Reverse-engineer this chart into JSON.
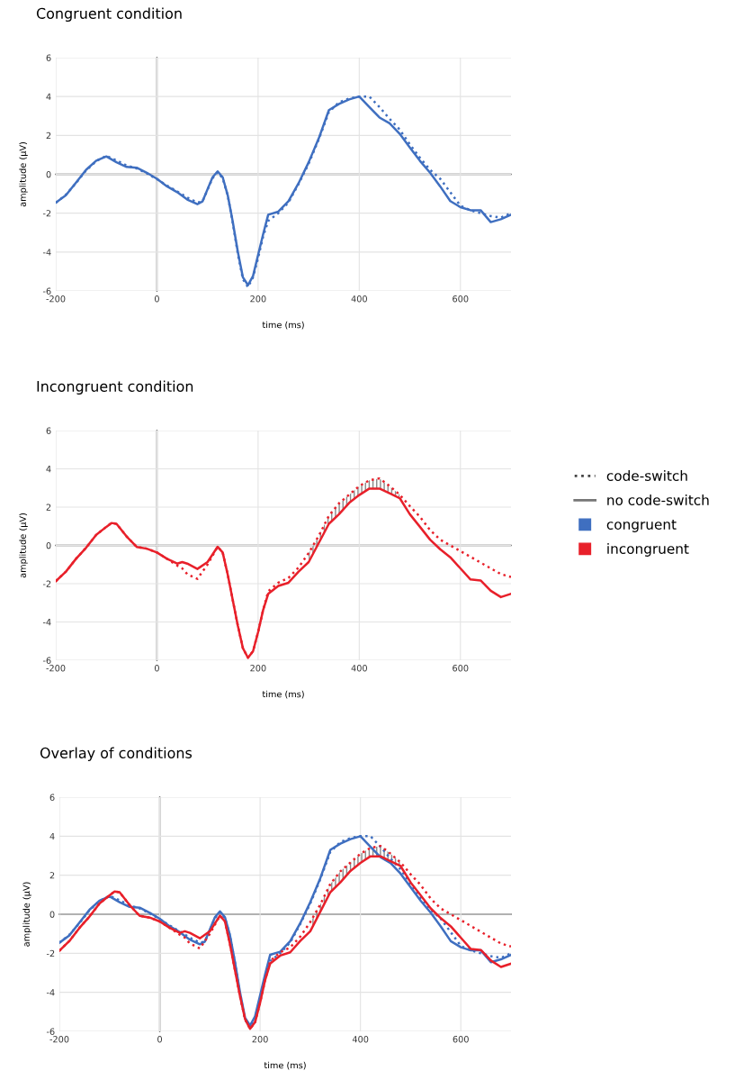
{
  "chart_data": [
    {
      "type": "line",
      "title": "Congruent condition",
      "xlabel": "time (ms)",
      "ylabel": "amplitude (µV)",
      "xlim": [
        -200,
        700
      ],
      "xticks": [
        -200,
        0,
        200,
        400,
        600
      ],
      "ylim": [
        -6,
        6
      ],
      "yticks": [
        -6,
        -4,
        -2,
        0,
        2,
        4,
        6
      ],
      "grid": true,
      "series": [
        {
          "color": "#3f6fc0",
          "line_style": "dotted",
          "x": [
            -200,
            -180,
            -160,
            -140,
            -120,
            -100,
            -80,
            -60,
            -40,
            -20,
            0,
            20,
            40,
            60,
            80,
            90,
            100,
            110,
            120,
            130,
            140,
            150,
            160,
            170,
            180,
            190,
            200,
            210,
            220,
            240,
            260,
            280,
            300,
            320,
            340,
            360,
            380,
            400,
            420,
            440,
            460,
            480,
            500,
            520,
            540,
            560,
            580,
            600,
            620,
            640,
            660,
            680,
            700
          ],
          "values": [
            -1.46,
            -1.05,
            -0.45,
            0.2,
            0.68,
            0.95,
            0.72,
            0.45,
            0.3,
            0.05,
            -0.25,
            -0.58,
            -0.88,
            -1.2,
            -1.45,
            -1.4,
            -0.8,
            -0.2,
            0.1,
            -0.2,
            -1.1,
            -2.5,
            -4.1,
            -5.4,
            -5.8,
            -5.3,
            -4.3,
            -3.2,
            -2.4,
            -2.0,
            -1.45,
            -0.5,
            0.55,
            1.8,
            3.2,
            3.7,
            3.9,
            4.0,
            4.0,
            3.46,
            2.85,
            2.3,
            1.54,
            0.85,
            0.23,
            -0.23,
            -0.92,
            -1.62,
            -1.85,
            -2.0,
            -2.15,
            -2.23,
            -2.0
          ]
        },
        {
          "color": "#3f6fc0",
          "line_style": "solid",
          "x": [
            -200,
            -180,
            -160,
            -140,
            -120,
            -100,
            -80,
            -60,
            -40,
            -20,
            0,
            20,
            40,
            60,
            80,
            90,
            100,
            110,
            120,
            130,
            140,
            150,
            160,
            170,
            180,
            190,
            200,
            210,
            220,
            240,
            260,
            280,
            300,
            320,
            340,
            360,
            380,
            400,
            420,
            440,
            460,
            480,
            500,
            520,
            540,
            560,
            580,
            600,
            620,
            640,
            660,
            680,
            700
          ],
          "values": [
            -1.46,
            -1.08,
            -0.43,
            0.23,
            0.7,
            0.92,
            0.62,
            0.38,
            0.34,
            0.08,
            -0.23,
            -0.62,
            -0.92,
            -1.3,
            -1.54,
            -1.4,
            -0.77,
            -0.15,
            0.15,
            -0.15,
            -1.08,
            -2.46,
            -4.0,
            -5.3,
            -5.7,
            -5.23,
            -4.15,
            -3.08,
            -2.08,
            -1.92,
            -1.38,
            -0.46,
            0.62,
            1.85,
            3.3,
            3.62,
            3.85,
            4.0,
            3.46,
            2.92,
            2.62,
            2.08,
            1.38,
            0.69,
            0.08,
            -0.62,
            -1.38,
            -1.69,
            -1.85,
            -1.85,
            -2.46,
            -2.31,
            -2.08
          ]
        }
      ]
    },
    {
      "type": "line",
      "title": "Incongruent condition",
      "xlabel": "time (ms)",
      "ylabel": "amplitude (µV)",
      "xlim": [
        -200,
        700
      ],
      "xticks": [
        -200,
        0,
        200,
        400,
        600
      ],
      "ylim": [
        -6,
        6
      ],
      "yticks": [
        -6,
        -4,
        -2,
        0,
        2,
        4,
        6
      ],
      "grid": true,
      "series": [
        {
          "color": "#e8202a",
          "line_style": "dotted",
          "x": [
            -200,
            -180,
            -160,
            -140,
            -120,
            -100,
            -90,
            -80,
            -60,
            -40,
            -20,
            0,
            20,
            40,
            50,
            60,
            80,
            100,
            120,
            130,
            140,
            150,
            160,
            170,
            180,
            190,
            200,
            210,
            220,
            240,
            260,
            280,
            300,
            320,
            340,
            360,
            380,
            400,
            420,
            440,
            460,
            480,
            500,
            520,
            540,
            560,
            580,
            600,
            620,
            640,
            660,
            680,
            700
          ],
          "values": [
            -1.87,
            -1.37,
            -0.7,
            -0.12,
            0.55,
            0.97,
            1.17,
            1.13,
            0.47,
            -0.08,
            -0.17,
            -0.37,
            -0.7,
            -1.05,
            -1.2,
            -1.5,
            -1.75,
            -1.0,
            -0.07,
            -0.37,
            -1.53,
            -2.87,
            -4.2,
            -5.37,
            -5.87,
            -5.53,
            -4.53,
            -3.37,
            -2.4,
            -1.95,
            -1.7,
            -1.15,
            -0.4,
            0.5,
            1.55,
            2.2,
            2.65,
            3.1,
            3.4,
            3.5,
            3.1,
            2.65,
            2.05,
            1.5,
            0.8,
            0.3,
            0.0,
            -0.3,
            -0.6,
            -0.9,
            -1.2,
            -1.5,
            -1.65
          ],
          "lower": [
            null,
            null,
            null,
            null,
            null,
            null,
            null,
            null,
            null,
            null,
            null,
            null,
            null,
            null,
            null,
            null,
            null,
            null,
            null,
            null,
            null,
            null,
            null,
            null,
            null,
            null,
            null,
            null,
            null,
            null,
            null,
            null,
            -0.87,
            0.13,
            1.13,
            1.63,
            2.22,
            2.63,
            2.97,
            2.97,
            2.72,
            2.47,
            null,
            null,
            null,
            null,
            null,
            null,
            null,
            null,
            null,
            null,
            null
          ],
          "upper": [
            null,
            null,
            null,
            null,
            null,
            null,
            null,
            null,
            null,
            null,
            null,
            null,
            null,
            null,
            null,
            null,
            null,
            null,
            null,
            null,
            null,
            null,
            null,
            null,
            null,
            null,
            null,
            null,
            null,
            null,
            null,
            null,
            -0.4,
            0.5,
            1.55,
            2.2,
            2.65,
            3.1,
            3.4,
            3.5,
            3.1,
            2.65,
            null,
            null,
            null,
            null,
            null,
            null,
            null,
            null,
            null,
            null,
            null
          ]
        },
        {
          "color": "#e8202a",
          "line_style": "solid",
          "x": [
            -200,
            -180,
            -160,
            -140,
            -120,
            -100,
            -90,
            -80,
            -60,
            -40,
            -20,
            0,
            20,
            40,
            50,
            60,
            80,
            100,
            120,
            130,
            140,
            150,
            160,
            170,
            180,
            190,
            200,
            210,
            220,
            240,
            260,
            280,
            300,
            320,
            340,
            360,
            380,
            400,
            420,
            440,
            460,
            480,
            500,
            520,
            540,
            560,
            580,
            600,
            620,
            640,
            660,
            680,
            700
          ],
          "values": [
            -1.87,
            -1.37,
            -0.7,
            -0.12,
            0.55,
            0.97,
            1.17,
            1.13,
            0.47,
            -0.08,
            -0.17,
            -0.37,
            -0.7,
            -0.95,
            -0.87,
            -0.95,
            -1.23,
            -0.87,
            -0.07,
            -0.37,
            -1.53,
            -2.87,
            -4.2,
            -5.37,
            -5.87,
            -5.53,
            -4.53,
            -3.37,
            -2.53,
            -2.12,
            -1.95,
            -1.37,
            -0.87,
            0.13,
            1.13,
            1.63,
            2.22,
            2.63,
            2.97,
            2.97,
            2.72,
            2.47,
            1.63,
            0.97,
            0.3,
            -0.2,
            -0.62,
            -1.2,
            -1.78,
            -1.83,
            -2.37,
            -2.7,
            -2.53
          ]
        }
      ]
    },
    {
      "type": "line",
      "title": "Overlay of conditions",
      "xlabel": "time (ms)",
      "ylabel": "amplitude (µV)",
      "xlim": [
        -200,
        700
      ],
      "xticks": [
        -200,
        0,
        200,
        400,
        600
      ],
      "ylim": [
        -6,
        6
      ],
      "yticks": [
        -6,
        -4,
        -2,
        0,
        2,
        4,
        6
      ],
      "grid": true,
      "series": [
        {
          "color": "#3f6fc0",
          "line_style": "dotted",
          "x": [
            -200,
            -180,
            -160,
            -140,
            -120,
            -100,
            -80,
            -60,
            -40,
            -20,
            0,
            20,
            40,
            60,
            80,
            90,
            100,
            110,
            120,
            130,
            140,
            150,
            160,
            170,
            180,
            190,
            200,
            210,
            220,
            240,
            260,
            280,
            300,
            320,
            340,
            360,
            380,
            400,
            420,
            440,
            460,
            480,
            500,
            520,
            540,
            560,
            580,
            600,
            620,
            640,
            660,
            680,
            700
          ],
          "values": [
            -1.46,
            -1.05,
            -0.45,
            0.2,
            0.68,
            0.95,
            0.72,
            0.45,
            0.3,
            0.05,
            -0.25,
            -0.58,
            -0.88,
            -1.2,
            -1.45,
            -1.4,
            -0.8,
            -0.2,
            0.1,
            -0.2,
            -1.1,
            -2.5,
            -4.1,
            -5.4,
            -5.8,
            -5.3,
            -4.3,
            -3.2,
            -2.4,
            -2.0,
            -1.45,
            -0.5,
            0.55,
            1.8,
            3.2,
            3.7,
            3.9,
            4.0,
            4.0,
            3.46,
            2.85,
            2.3,
            1.54,
            0.85,
            0.23,
            -0.23,
            -0.92,
            -1.62,
            -1.85,
            -2.0,
            -2.15,
            -2.23,
            -2.0
          ]
        },
        {
          "color": "#3f6fc0",
          "line_style": "solid",
          "x": [
            -200,
            -180,
            -160,
            -140,
            -120,
            -100,
            -80,
            -60,
            -40,
            -20,
            0,
            20,
            40,
            60,
            80,
            90,
            100,
            110,
            120,
            130,
            140,
            150,
            160,
            170,
            180,
            190,
            200,
            210,
            220,
            240,
            260,
            280,
            300,
            320,
            340,
            360,
            380,
            400,
            420,
            440,
            460,
            480,
            500,
            520,
            540,
            560,
            580,
            600,
            620,
            640,
            660,
            680,
            700
          ],
          "values": [
            -1.46,
            -1.08,
            -0.43,
            0.23,
            0.7,
            0.92,
            0.62,
            0.38,
            0.34,
            0.08,
            -0.23,
            -0.62,
            -0.92,
            -1.3,
            -1.54,
            -1.4,
            -0.77,
            -0.15,
            0.15,
            -0.15,
            -1.08,
            -2.46,
            -4.0,
            -5.3,
            -5.7,
            -5.23,
            -4.15,
            -3.08,
            -2.08,
            -1.92,
            -1.38,
            -0.46,
            0.62,
            1.85,
            3.3,
            3.62,
            3.85,
            4.0,
            3.46,
            2.92,
            2.62,
            2.08,
            1.38,
            0.69,
            0.08,
            -0.62,
            -1.38,
            -1.69,
            -1.85,
            -1.85,
            -2.46,
            -2.31,
            -2.08
          ]
        },
        {
          "color": "#e8202a",
          "line_style": "dotted",
          "x": [
            -200,
            -180,
            -160,
            -140,
            -120,
            -100,
            -90,
            -80,
            -60,
            -40,
            -20,
            0,
            20,
            40,
            50,
            60,
            80,
            100,
            120,
            130,
            140,
            150,
            160,
            170,
            180,
            190,
            200,
            210,
            220,
            240,
            260,
            280,
            300,
            320,
            340,
            360,
            380,
            400,
            420,
            440,
            460,
            480,
            500,
            520,
            540,
            560,
            580,
            600,
            620,
            640,
            660,
            680,
            700
          ],
          "values": [
            -1.87,
            -1.37,
            -0.7,
            -0.12,
            0.55,
            0.97,
            1.17,
            1.13,
            0.47,
            -0.08,
            -0.17,
            -0.37,
            -0.7,
            -1.05,
            -1.2,
            -1.5,
            -1.75,
            -1.0,
            -0.07,
            -0.37,
            -1.53,
            -2.87,
            -4.2,
            -5.37,
            -5.87,
            -5.53,
            -4.53,
            -3.37,
            -2.4,
            -1.95,
            -1.7,
            -1.15,
            -0.4,
            0.5,
            1.55,
            2.2,
            2.65,
            3.1,
            3.4,
            3.5,
            3.1,
            2.65,
            2.05,
            1.5,
            0.8,
            0.3,
            0.0,
            -0.3,
            -0.6,
            -0.9,
            -1.2,
            -1.5,
            -1.65
          ],
          "lower": [
            null,
            null,
            null,
            null,
            null,
            null,
            null,
            null,
            null,
            null,
            null,
            null,
            null,
            null,
            null,
            null,
            null,
            null,
            null,
            null,
            null,
            null,
            null,
            null,
            null,
            null,
            null,
            null,
            null,
            null,
            null,
            null,
            -0.87,
            0.13,
            1.13,
            1.63,
            2.22,
            2.63,
            2.97,
            2.97,
            2.72,
            2.47,
            null,
            null,
            null,
            null,
            null,
            null,
            null,
            null,
            null,
            null,
            null
          ],
          "upper": [
            null,
            null,
            null,
            null,
            null,
            null,
            null,
            null,
            null,
            null,
            null,
            null,
            null,
            null,
            null,
            null,
            null,
            null,
            null,
            null,
            null,
            null,
            null,
            null,
            null,
            null,
            null,
            null,
            null,
            null,
            null,
            null,
            -0.4,
            0.5,
            1.55,
            2.2,
            2.65,
            3.1,
            3.4,
            3.5,
            3.1,
            2.65,
            null,
            null,
            null,
            null,
            null,
            null,
            null,
            null,
            null,
            null,
            null
          ]
        },
        {
          "color": "#e8202a",
          "line_style": "solid",
          "x": [
            -200,
            -180,
            -160,
            -140,
            -120,
            -100,
            -90,
            -80,
            -60,
            -40,
            -20,
            0,
            20,
            40,
            50,
            60,
            80,
            100,
            120,
            130,
            140,
            150,
            160,
            170,
            180,
            190,
            200,
            210,
            220,
            240,
            260,
            280,
            300,
            320,
            340,
            360,
            380,
            400,
            420,
            440,
            460,
            480,
            500,
            520,
            540,
            560,
            580,
            600,
            620,
            640,
            660,
            680,
            700
          ],
          "values": [
            -1.87,
            -1.37,
            -0.7,
            -0.12,
            0.55,
            0.97,
            1.17,
            1.13,
            0.47,
            -0.08,
            -0.17,
            -0.37,
            -0.7,
            -0.95,
            -0.87,
            -0.95,
            -1.23,
            -0.87,
            -0.07,
            -0.37,
            -1.53,
            -2.87,
            -4.2,
            -5.37,
            -5.87,
            -5.53,
            -4.53,
            -3.37,
            -2.53,
            -2.12,
            -1.95,
            -1.37,
            -0.87,
            0.13,
            1.13,
            1.63,
            2.22,
            2.63,
            2.97,
            2.97,
            2.72,
            2.47,
            1.63,
            0.97,
            0.3,
            -0.2,
            -0.62,
            -1.2,
            -1.78,
            -1.83,
            -2.37,
            -2.7,
            -2.53
          ]
        }
      ]
    },
    {
      "type": "other",
      "series": [
        {
          "name": "code-switch",
          "color": "#444444",
          "line_style": "dotted"
        },
        {
          "name": "no code-switch",
          "color": "#777777",
          "line_style": "solid"
        },
        {
          "name": "congruent",
          "color": "#3f6fc0",
          "marker": "square"
        },
        {
          "name": "incongruent",
          "color": "#e8202a",
          "marker": "square"
        }
      ]
    }
  ]
}
